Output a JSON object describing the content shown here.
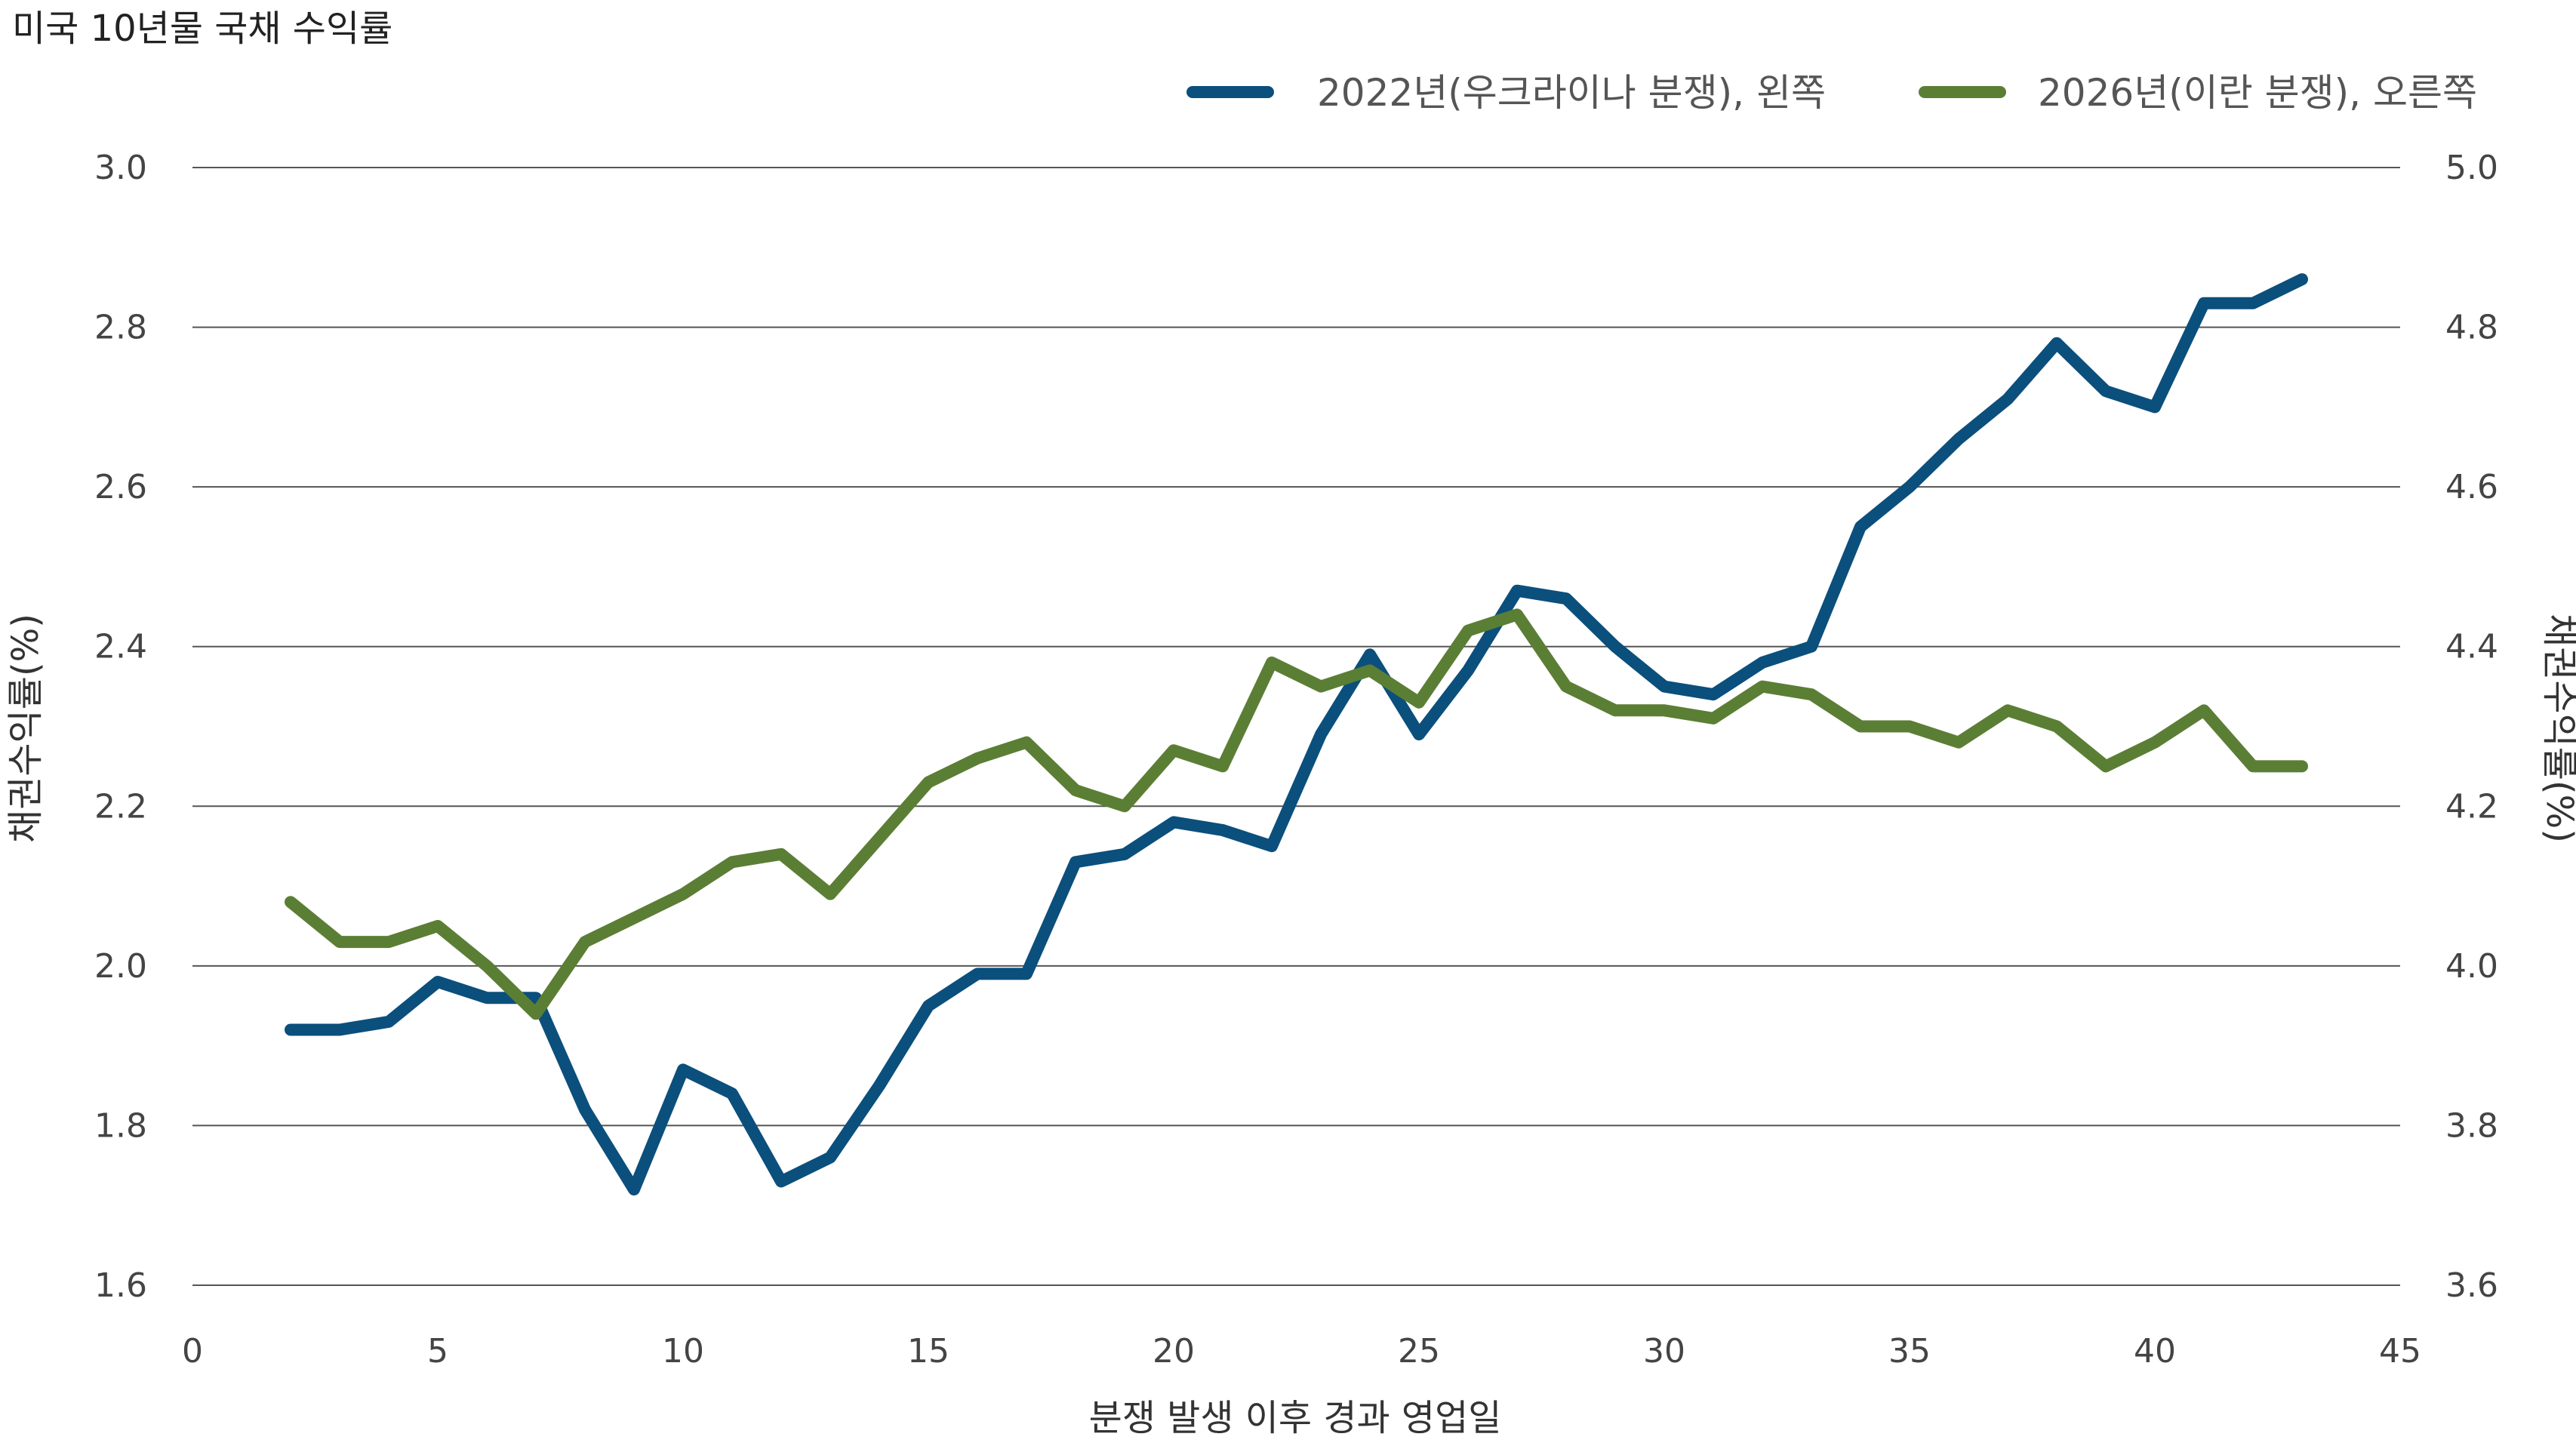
{
  "chart_data": {
    "type": "line",
    "title": "미국 10년물 국채 수익률",
    "xlabel": "분쟁 발생 이후 경과 영업일",
    "ylabel_left": "채권수익률(%)",
    "ylabel_right": "채권수익률(%)",
    "xlim": [
      0,
      45
    ],
    "x_ticks": [
      0,
      5,
      10,
      15,
      20,
      25,
      30,
      35,
      40,
      45
    ],
    "x_tick_labels": [
      "0",
      "5",
      "10",
      "15",
      "20",
      "25",
      "30",
      "35",
      "40",
      "45"
    ],
    "ylim_left": [
      1.6,
      3.0
    ],
    "ylim_right": [
      3.6,
      5.0
    ],
    "y_ticks_left": [
      1.6,
      1.8,
      2.0,
      2.2,
      2.4,
      2.6,
      2.8,
      3.0
    ],
    "y_tick_labels_left": [
      "1.6",
      "1.8",
      "2.0",
      "2.2",
      "2.4",
      "2.6",
      "2.8",
      "3.0"
    ],
    "y_ticks_right": [
      3.6,
      3.8,
      4.0,
      4.2,
      4.4,
      4.6,
      4.8,
      5.0
    ],
    "y_tick_labels_right": [
      "3.6",
      "3.8",
      "4.0",
      "4.2",
      "4.4",
      "4.6",
      "4.8",
      "5.0"
    ],
    "grid": "horizontal",
    "legend_position": "top-right",
    "x": [
      2,
      3,
      4,
      5,
      6,
      7,
      8,
      9,
      10,
      11,
      12,
      13,
      14,
      15,
      16,
      17,
      18,
      19,
      20,
      21,
      22,
      23,
      24,
      25,
      26,
      27,
      28,
      29,
      30,
      31,
      32,
      33,
      34,
      35,
      36,
      37,
      38,
      39,
      40,
      41,
      42,
      43
    ],
    "series": [
      {
        "name": "2022년(우크라이나 분쟁), 왼쪽",
        "axis": "left",
        "color": "#0b4f7c",
        "values": [
          1.92,
          1.92,
          1.93,
          1.98,
          1.96,
          1.96,
          1.82,
          1.72,
          1.87,
          1.84,
          1.73,
          1.76,
          1.85,
          1.95,
          1.99,
          1.99,
          2.13,
          2.14,
          2.18,
          2.17,
          2.15,
          2.29,
          2.39,
          2.29,
          2.37,
          2.47,
          2.46,
          2.4,
          2.35,
          2.34,
          2.38,
          2.4,
          2.55,
          2.6,
          2.66,
          2.71,
          2.78,
          2.72,
          2.7,
          2.83,
          2.83,
          2.86
        ]
      },
      {
        "name": "2026년(이란 분쟁), 오른쪽",
        "axis": "right",
        "color": "#5b7e35",
        "values": [
          4.08,
          4.03,
          4.03,
          4.05,
          4.0,
          3.94,
          4.03,
          4.06,
          4.09,
          4.13,
          4.14,
          4.09,
          4.16,
          4.23,
          4.26,
          4.28,
          4.22,
          4.2,
          4.27,
          4.25,
          4.38,
          4.35,
          4.37,
          4.33,
          4.42,
          4.44,
          4.35,
          4.32,
          4.32,
          4.31,
          4.35,
          4.34,
          4.3,
          4.3,
          4.28,
          4.32,
          4.3,
          4.25,
          4.28,
          4.32,
          4.25,
          4.25
        ]
      }
    ]
  }
}
